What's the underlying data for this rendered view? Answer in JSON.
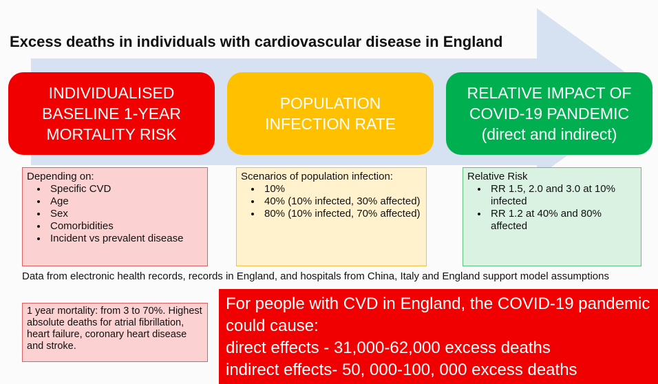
{
  "title": "Excess deaths in individuals with cardiovascular disease in England",
  "stages": [
    {
      "label": "INDIVIDUALISED BASELINE 1-YEAR MORTALITY RISK",
      "heading": "Depending on:",
      "items": [
        "Specific CVD",
        "Age",
        "Sex",
        "Comorbidities",
        "Incident vs prevalent disease"
      ]
    },
    {
      "label": "POPULATION INFECTION RATE",
      "heading": "Scenarios of population infection:",
      "items": [
        "10%",
        "40% (10% infected, 30% affected)",
        "80% (10% infected, 70% affected)"
      ]
    },
    {
      "label": "RELATIVE IMPACT OF COVID-19 PANDEMIC (direct and indirect)",
      "heading": "Relative Risk",
      "items": [
        "RR 1.5, 2.0 and 3.0 at 10% infected",
        "RR 1.2 at 40% and 80% affected"
      ]
    }
  ],
  "data_note": "Data from electronic health records, records in England, and hospitals from China, Italy and England support model assumptions",
  "mortality_note": "1 year mortality: from 3 to 70%. Highest absolute deaths for atrial fibrillation, heart failure, coronary heart disease and stroke.",
  "conclusion": [
    "For people with CVD in England, the COVID-19 pandemic could cause:",
    "direct effects - 31,000-62,000 excess deaths",
    "indirect effects- 50, 000-100, 000 excess deaths"
  ]
}
